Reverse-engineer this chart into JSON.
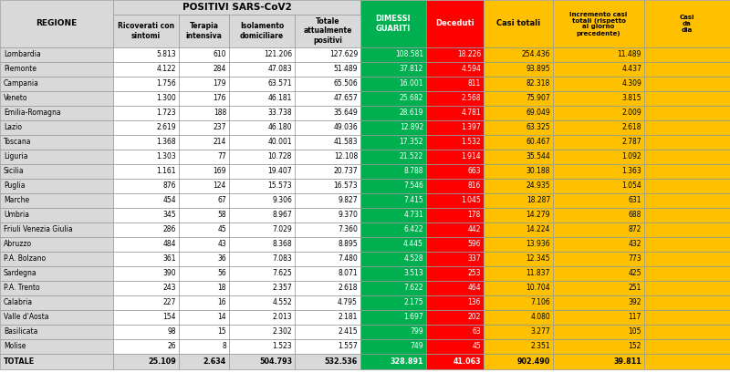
{
  "title": "POSITIVI SARS-CoV2",
  "regions": [
    "Lombardia",
    "Piemonte",
    "Campania",
    "Veneto",
    "Emilia-Romagna",
    "Lazio",
    "Toscana",
    "Liguria",
    "Sicilia",
    "Puglia",
    "Marche",
    "Umbria",
    "Friuli Venezia Giulia",
    "Abruzzo",
    "P.A. Bolzano",
    "Sardegna",
    "P.A. Trento",
    "Calabria",
    "Valle d'Aosta",
    "Basilicata",
    "Molise"
  ],
  "data": [
    [
      5813,
      610,
      121206,
      127629,
      108581,
      18226,
      254436,
      11489
    ],
    [
      4122,
      284,
      47083,
      51489,
      37812,
      4594,
      93895,
      4437
    ],
    [
      1756,
      179,
      63571,
      65506,
      16001,
      811,
      82318,
      4309
    ],
    [
      1300,
      176,
      46181,
      47657,
      25682,
      2568,
      75907,
      3815
    ],
    [
      1723,
      188,
      33738,
      35649,
      28619,
      4781,
      69049,
      2009
    ],
    [
      2619,
      237,
      46180,
      49036,
      12892,
      1397,
      63325,
      2618
    ],
    [
      1368,
      214,
      40001,
      41583,
      17352,
      1532,
      60467,
      2787
    ],
    [
      1303,
      77,
      10728,
      12108,
      21522,
      1914,
      35544,
      1092
    ],
    [
      1161,
      169,
      19407,
      20737,
      8788,
      663,
      30188,
      1363
    ],
    [
      876,
      124,
      15573,
      16573,
      7546,
      816,
      24935,
      1054
    ],
    [
      454,
      67,
      9306,
      9827,
      7415,
      1045,
      18287,
      631
    ],
    [
      345,
      58,
      8967,
      9370,
      4731,
      178,
      14279,
      688
    ],
    [
      286,
      45,
      7029,
      7360,
      6422,
      442,
      14224,
      872
    ],
    [
      484,
      43,
      8368,
      8895,
      4445,
      596,
      13936,
      432
    ],
    [
      361,
      36,
      7083,
      7480,
      4528,
      337,
      12345,
      773
    ],
    [
      390,
      56,
      7625,
      8071,
      3513,
      253,
      11837,
      425
    ],
    [
      243,
      18,
      2357,
      2618,
      7622,
      464,
      10704,
      251
    ],
    [
      227,
      16,
      4552,
      4795,
      2175,
      136,
      7106,
      392
    ],
    [
      154,
      14,
      2013,
      2181,
      1697,
      202,
      4080,
      117
    ],
    [
      98,
      15,
      2302,
      2415,
      799,
      63,
      3277,
      105
    ],
    [
      26,
      8,
      1523,
      1557,
      749,
      45,
      2351,
      152
    ]
  ],
  "totals": [
    25109,
    2634,
    504793,
    532536,
    328891,
    41063,
    902490,
    39811
  ],
  "col_sub_headers": [
    "Ricoverati con\nsintomi",
    "Terapia\nintensiva",
    "Isolamento\ndomiciliare",
    "Totale\nattualmente\npositivi"
  ],
  "right_col_headers": [
    "DIMESSI\nGUARITI",
    "Deceduti",
    "Casi totali",
    "Incremento casi\ntotali (rispetto\nal giorno\nprecedente)",
    "Casi\nda\ndia"
  ],
  "bg_grey": "#d9d9d9",
  "bg_green": "#00b050",
  "bg_red": "#ff0000",
  "bg_yellow": "#ffc000",
  "bg_white": "#ffffff",
  "edge_color": "#999999",
  "figsize": [
    8.0,
    4.2
  ],
  "dpi": 100
}
